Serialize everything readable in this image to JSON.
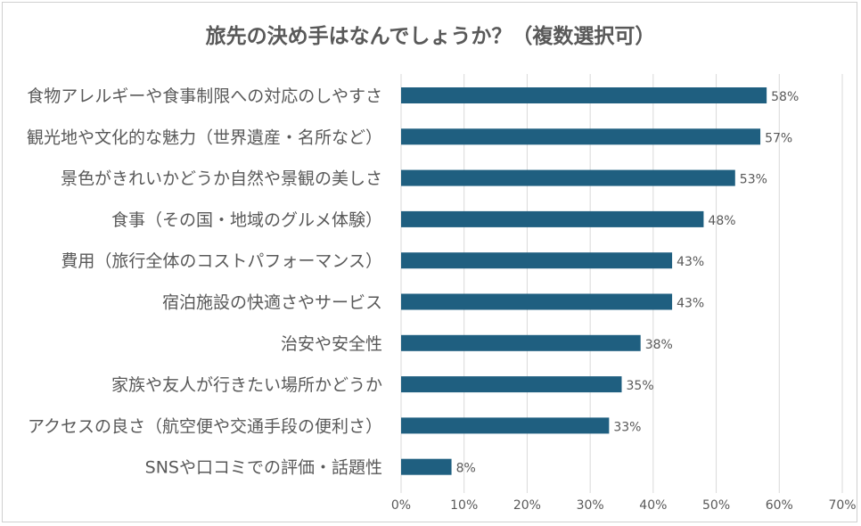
{
  "chart_data": {
    "type": "bar",
    "orientation": "horizontal",
    "title": "旅先の決め手はなんでしょうか？（複数選択可）",
    "categories": [
      "食物アレルギーや食事制限への対応のしやすさ",
      "観光地や文化的な魅力（世界遺産・名所など）",
      "景色がきれいかどうか自然や景観の美しさ",
      "食事（その国・地域のグルメ体験）",
      "費用（旅行全体のコストパフォーマンス）",
      "宿泊施設の快適さやサービス",
      "治安や安全性",
      "家族や友人が行きたい場所かどうか",
      "アクセスの良さ（航空便や交通手段の便利さ）",
      "SNSや口コミでの評価・話題性"
    ],
    "values": [
      58,
      57,
      53,
      48,
      43,
      43,
      38,
      35,
      33,
      8
    ],
    "data_labels": [
      "58%",
      "57%",
      "53%",
      "48%",
      "43%",
      "43%",
      "38%",
      "35%",
      "33%",
      "8%"
    ],
    "x_ticks": [
      "0%",
      "10%",
      "20%",
      "30%",
      "40%",
      "50%",
      "60%",
      "70%"
    ],
    "xlim": [
      0,
      70
    ],
    "xlabel": "",
    "ylabel": "",
    "grid": "vertical",
    "bar_color": "#1f5f80",
    "label_color": "#595959",
    "grid_color": "#d9d9d9",
    "title_color": "#595959"
  }
}
